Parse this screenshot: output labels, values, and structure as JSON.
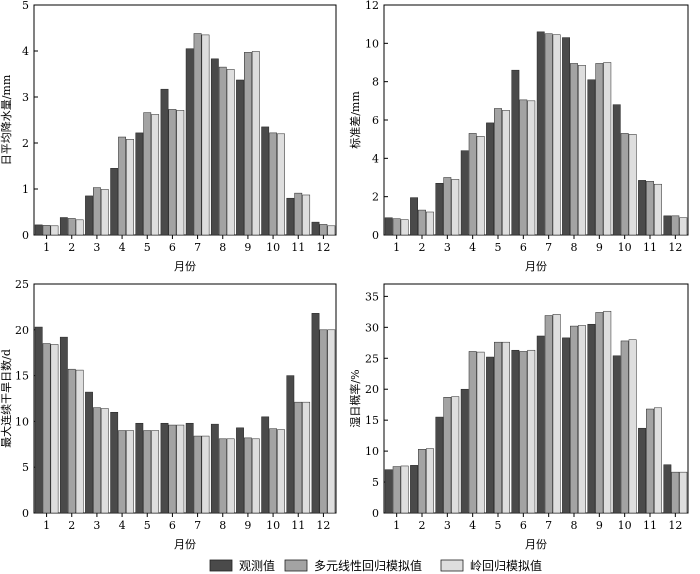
{
  "colors": {
    "observed": "#4a4a4a",
    "mlr": "#a3a3a3",
    "ridge": "#dedede",
    "stroke": "#222222"
  },
  "legend": {
    "position": "bottom-center",
    "items": [
      "观测值",
      "多元线性回归模拟值",
      "岭回归模拟值"
    ]
  },
  "chart_data": [
    {
      "type": "bar",
      "xlabel": "月份",
      "ylabel": "日平均降水量/mm",
      "ylim": [
        0,
        5
      ],
      "yticks": [
        0,
        1,
        2,
        3,
        4,
        5
      ],
      "categories": [
        "1",
        "2",
        "3",
        "4",
        "5",
        "6",
        "7",
        "8",
        "9",
        "10",
        "11",
        "12"
      ],
      "series": [
        {
          "name": "观测值",
          "values": [
            0.22,
            0.38,
            0.85,
            1.45,
            2.22,
            3.17,
            4.05,
            3.83,
            3.37,
            2.35,
            0.8,
            0.28
          ]
        },
        {
          "name": "多元线性回归模拟值",
          "values": [
            0.21,
            0.36,
            1.03,
            2.13,
            2.66,
            2.73,
            4.38,
            3.65,
            3.97,
            2.22,
            0.91,
            0.23
          ]
        },
        {
          "name": "岭回归模拟值",
          "values": [
            0.2,
            0.33,
            0.99,
            2.08,
            2.62,
            2.71,
            4.35,
            3.6,
            3.99,
            2.2,
            0.87,
            0.2
          ]
        }
      ]
    },
    {
      "type": "bar",
      "xlabel": "月份",
      "ylabel": "标准差/mm",
      "ylim": [
        0,
        12
      ],
      "yticks": [
        0,
        2,
        4,
        6,
        8,
        10,
        12
      ],
      "categories": [
        "1",
        "2",
        "3",
        "4",
        "5",
        "6",
        "7",
        "8",
        "9",
        "10",
        "11",
        "12"
      ],
      "series": [
        {
          "name": "观测值",
          "values": [
            0.9,
            1.95,
            2.7,
            4.4,
            5.85,
            8.6,
            10.6,
            10.3,
            8.1,
            6.8,
            2.85,
            1.0
          ]
        },
        {
          "name": "多元线性回归模拟值",
          "values": [
            0.85,
            1.3,
            3.0,
            5.3,
            6.6,
            7.05,
            10.5,
            8.95,
            8.95,
            5.3,
            2.8,
            1.0
          ]
        },
        {
          "name": "岭回归模拟值",
          "values": [
            0.8,
            1.2,
            2.9,
            5.15,
            6.5,
            7.0,
            10.45,
            8.85,
            9.0,
            5.25,
            2.65,
            0.9
          ]
        }
      ]
    },
    {
      "type": "bar",
      "xlabel": "月份",
      "ylabel": "最大连续干旱日数/d",
      "ylim": [
        0,
        25
      ],
      "yticks": [
        0,
        5,
        10,
        15,
        20,
        25
      ],
      "categories": [
        "1",
        "2",
        "3",
        "4",
        "5",
        "6",
        "7",
        "8",
        "9",
        "10",
        "11",
        "12"
      ],
      "series": [
        {
          "name": "观测值",
          "values": [
            20.3,
            19.2,
            13.2,
            11.0,
            9.8,
            9.8,
            9.8,
            9.7,
            9.3,
            10.5,
            15.0,
            21.8
          ]
        },
        {
          "name": "多元线性回归模拟值",
          "values": [
            18.5,
            15.7,
            11.5,
            9.0,
            9.0,
            9.6,
            8.4,
            8.1,
            8.2,
            9.2,
            12.1,
            20.0
          ]
        },
        {
          "name": "岭回归模拟值",
          "values": [
            18.4,
            15.6,
            11.4,
            9.0,
            9.0,
            9.6,
            8.4,
            8.1,
            8.1,
            9.1,
            12.1,
            20.0
          ]
        }
      ]
    },
    {
      "type": "bar",
      "xlabel": "月份",
      "ylabel": "湿日概率/%",
      "ylim": [
        0,
        37
      ],
      "yticks": [
        0,
        5,
        10,
        15,
        20,
        25,
        30,
        35
      ],
      "categories": [
        "1",
        "2",
        "3",
        "4",
        "5",
        "6",
        "7",
        "8",
        "9",
        "10",
        "11",
        "12"
      ],
      "series": [
        {
          "name": "观测值",
          "values": [
            7.0,
            7.7,
            15.5,
            20.0,
            25.2,
            26.3,
            28.6,
            28.3,
            30.5,
            25.4,
            13.7,
            7.8
          ]
        },
        {
          "name": "多元线性回归模拟值",
          "values": [
            7.5,
            10.3,
            18.7,
            26.1,
            27.6,
            26.1,
            31.9,
            30.2,
            32.4,
            27.8,
            16.8,
            6.6
          ]
        },
        {
          "name": "岭回归模拟值",
          "values": [
            7.6,
            10.4,
            18.8,
            26.0,
            27.6,
            26.3,
            32.1,
            30.3,
            32.6,
            28.0,
            17.0,
            6.6
          ]
        }
      ]
    }
  ]
}
